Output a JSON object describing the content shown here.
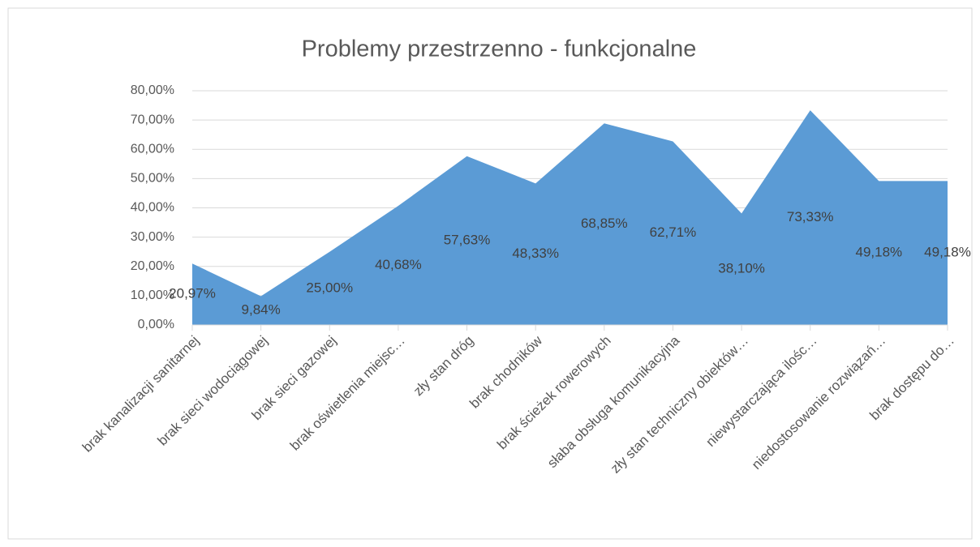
{
  "chart_data": {
    "type": "area",
    "title": "Problemy przestrzenno - funkcjonalne",
    "categories": [
      "brak kanalizacji sanitarnej",
      "brak sieci wodociągowej",
      "brak sieci gazowej",
      "brak oświetlenia miejsc…",
      "zły stan dróg",
      "brak chodników",
      "brak ścieżek rowerowych",
      "słaba obsługa komunikacyjna",
      "zły stan techniczny obiektów…",
      "niewystarczająca ilośc…",
      "niedostosowanie rozwiązań…",
      "brak dostępu do…"
    ],
    "values": [
      20.97,
      9.84,
      25.0,
      40.68,
      57.63,
      48.33,
      68.85,
      62.71,
      38.1,
      73.33,
      49.18,
      49.18
    ],
    "value_labels": [
      "20,97%",
      "9,84%",
      "25,00%",
      "40,68%",
      "57,63%",
      "48,33%",
      "68,85%",
      "62,71%",
      "38,10%",
      "73,33%",
      "49,18%",
      "49,18%"
    ],
    "color": "#5b9bd5",
    "ylim": [
      0,
      80
    ],
    "yticks": [
      {
        "value": 0,
        "label": "0,00%"
      },
      {
        "value": 10,
        "label": "10,00%"
      },
      {
        "value": 20,
        "label": "20,00%"
      },
      {
        "value": 30,
        "label": "30,00%"
      },
      {
        "value": 40,
        "label": "40,00%"
      },
      {
        "value": 50,
        "label": "50,00%"
      },
      {
        "value": 60,
        "label": "60,00%"
      },
      {
        "value": 70,
        "label": "70,00%"
      },
      {
        "value": 80,
        "label": "80,00%"
      }
    ],
    "grid": true
  }
}
